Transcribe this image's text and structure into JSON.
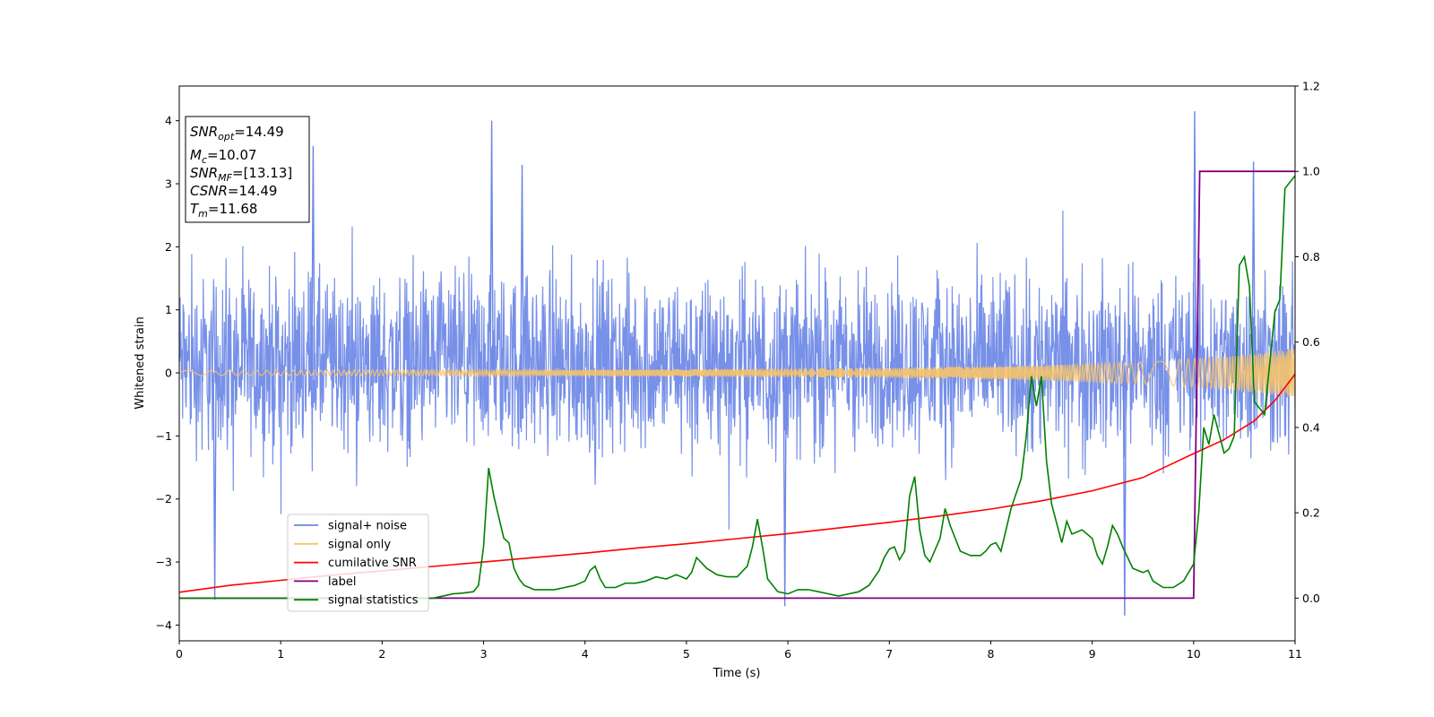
{
  "chart_data": {
    "type": "line",
    "xlabel": "Time (s)",
    "ylabel": "Whitened strain",
    "xlim": [
      0,
      11
    ],
    "ylim_left": [
      -4.25,
      4.55
    ],
    "ylim_right": [
      -0.1,
      1.2
    ],
    "x_ticks": [
      "0",
      "1",
      "2",
      "3",
      "4",
      "5",
      "6",
      "7",
      "8",
      "9",
      "10",
      "11"
    ],
    "y_left_ticks": [
      "−4",
      "−3",
      "−2",
      "−1",
      "0",
      "1",
      "2",
      "3",
      "4"
    ],
    "y_right_ticks": [
      "0.0",
      "0.2",
      "0.4",
      "0.6",
      "0.8",
      "1.0",
      "1.2"
    ],
    "legend": {
      "placement": "lower-left",
      "entries": [
        {
          "label": "signal+ noise",
          "color": "#6b87e6"
        },
        {
          "label": "signal only",
          "color": "#f5c36b"
        },
        {
          "label": "cumilative SNR",
          "color": "#ff0000"
        },
        {
          "label": "label",
          "color": "#800080"
        },
        {
          "label": "signal statistics",
          "color": "#008000"
        }
      ]
    },
    "annotation_box": {
      "lines": [
        {
          "name": "SNR",
          "sub": "opt",
          "value": "=14.49"
        },
        {
          "name": "M",
          "sub": "c",
          "value": "=10.07"
        },
        {
          "name": "SNR",
          "sub": "MF",
          "value": "=[13.13]"
        },
        {
          "name": "CSNR",
          "sub": "",
          "value": "=14.49"
        },
        {
          "name": "T",
          "sub": "m",
          "value": "=11.68"
        }
      ]
    },
    "series": [
      {
        "name": "signal+ noise",
        "axis": "left",
        "color": "#6b87e6",
        "description_kind": "noise band",
        "typical_range": [
          -1.8,
          2.4
        ],
        "extreme_peaks": [
          {
            "x": 3.08,
            "y": 4.0
          },
          {
            "x": 1.32,
            "y": 3.6
          },
          {
            "x": 10.01,
            "y": 4.15
          },
          {
            "x": 9.32,
            "y": -3.85
          },
          {
            "x": 5.97,
            "y": -3.7
          },
          {
            "x": 0.35,
            "y": -3.6
          },
          {
            "x": 10.59,
            "y": 3.35
          },
          {
            "x": 3.38,
            "y": 3.3
          }
        ]
      },
      {
        "name": "signal only",
        "axis": "left",
        "color": "#f5c36b",
        "amplitude_points": [
          [
            0,
            0.04
          ],
          [
            4,
            0.05
          ],
          [
            7,
            0.08
          ],
          [
            8.5,
            0.12
          ],
          [
            9.5,
            0.18
          ],
          [
            10.3,
            0.26
          ],
          [
            11,
            0.38
          ]
        ]
      },
      {
        "name": "cumilative SNR",
        "axis": "left",
        "color": "#ff0000",
        "x": [
          0,
          0.5,
          1,
          1.5,
          2,
          2.5,
          3,
          3.5,
          4,
          4.5,
          5,
          5.5,
          6,
          6.5,
          7,
          7.5,
          8,
          8.5,
          9,
          9.5,
          10,
          10.3,
          10.6,
          10.8,
          11
        ],
        "y": [
          -3.48,
          -3.37,
          -3.29,
          -3.21,
          -3.14,
          -3.07,
          -3.0,
          -2.93,
          -2.86,
          -2.78,
          -2.71,
          -2.63,
          -2.55,
          -2.46,
          -2.37,
          -2.27,
          -2.16,
          -2.03,
          -1.87,
          -1.66,
          -1.28,
          -1.06,
          -0.76,
          -0.44,
          -0.02
        ]
      },
      {
        "name": "label",
        "axis": "right",
        "color": "#800080",
        "x": [
          0,
          10.0,
          10.06,
          11
        ],
        "y": [
          0,
          0,
          1.0,
          1.0
        ]
      },
      {
        "name": "signal statistics",
        "axis": "right",
        "color": "#008000",
        "x": [
          0,
          0.5,
          1,
          1.5,
          2,
          2.5,
          2.7,
          2.8,
          2.9,
          2.95,
          3.0,
          3.05,
          3.1,
          3.15,
          3.2,
          3.25,
          3.3,
          3.35,
          3.4,
          3.5,
          3.6,
          3.7,
          3.8,
          3.9,
          4.0,
          4.05,
          4.1,
          4.15,
          4.2,
          4.3,
          4.4,
          4.5,
          4.6,
          4.7,
          4.8,
          4.9,
          5.0,
          5.05,
          5.1,
          5.2,
          5.3,
          5.4,
          5.5,
          5.6,
          5.65,
          5.7,
          5.75,
          5.8,
          5.9,
          6.0,
          6.1,
          6.2,
          6.3,
          6.4,
          6.5,
          6.6,
          6.7,
          6.8,
          6.9,
          6.95,
          7.0,
          7.05,
          7.1,
          7.15,
          7.2,
          7.25,
          7.3,
          7.35,
          7.4,
          7.5,
          7.55,
          7.6,
          7.7,
          7.8,
          7.9,
          7.95,
          8.0,
          8.05,
          8.1,
          8.2,
          8.3,
          8.35,
          8.4,
          8.45,
          8.5,
          8.55,
          8.6,
          8.7,
          8.75,
          8.8,
          8.9,
          9.0,
          9.05,
          9.1,
          9.15,
          9.2,
          9.25,
          9.3,
          9.4,
          9.5,
          9.55,
          9.6,
          9.7,
          9.8,
          9.9,
          10.0,
          10.05,
          10.1,
          10.15,
          10.2,
          10.3,
          10.35,
          10.4,
          10.45,
          10.5,
          10.55,
          10.6,
          10.7,
          10.8,
          10.85,
          10.9,
          11.0
        ],
        "y": [
          0.0,
          0.0,
          0.0,
          0.0,
          0.0,
          0.0,
          0.01,
          0.012,
          0.015,
          0.03,
          0.12,
          0.305,
          0.24,
          0.19,
          0.14,
          0.13,
          0.07,
          0.045,
          0.03,
          0.02,
          0.02,
          0.02,
          0.025,
          0.03,
          0.04,
          0.065,
          0.075,
          0.045,
          0.025,
          0.025,
          0.035,
          0.035,
          0.04,
          0.05,
          0.045,
          0.055,
          0.045,
          0.06,
          0.095,
          0.07,
          0.055,
          0.05,
          0.05,
          0.075,
          0.12,
          0.185,
          0.12,
          0.045,
          0.015,
          0.01,
          0.02,
          0.02,
          0.015,
          0.01,
          0.005,
          0.01,
          0.015,
          0.03,
          0.065,
          0.095,
          0.115,
          0.12,
          0.09,
          0.11,
          0.24,
          0.285,
          0.16,
          0.1,
          0.085,
          0.14,
          0.21,
          0.17,
          0.11,
          0.1,
          0.1,
          0.11,
          0.125,
          0.13,
          0.11,
          0.21,
          0.28,
          0.38,
          0.52,
          0.45,
          0.52,
          0.32,
          0.22,
          0.13,
          0.18,
          0.15,
          0.16,
          0.14,
          0.1,
          0.08,
          0.12,
          0.17,
          0.15,
          0.12,
          0.07,
          0.06,
          0.065,
          0.04,
          0.025,
          0.025,
          0.04,
          0.08,
          0.2,
          0.4,
          0.36,
          0.43,
          0.34,
          0.35,
          0.38,
          0.78,
          0.8,
          0.73,
          0.46,
          0.43,
          0.67,
          0.7,
          0.96,
          0.99
        ]
      }
    ]
  }
}
